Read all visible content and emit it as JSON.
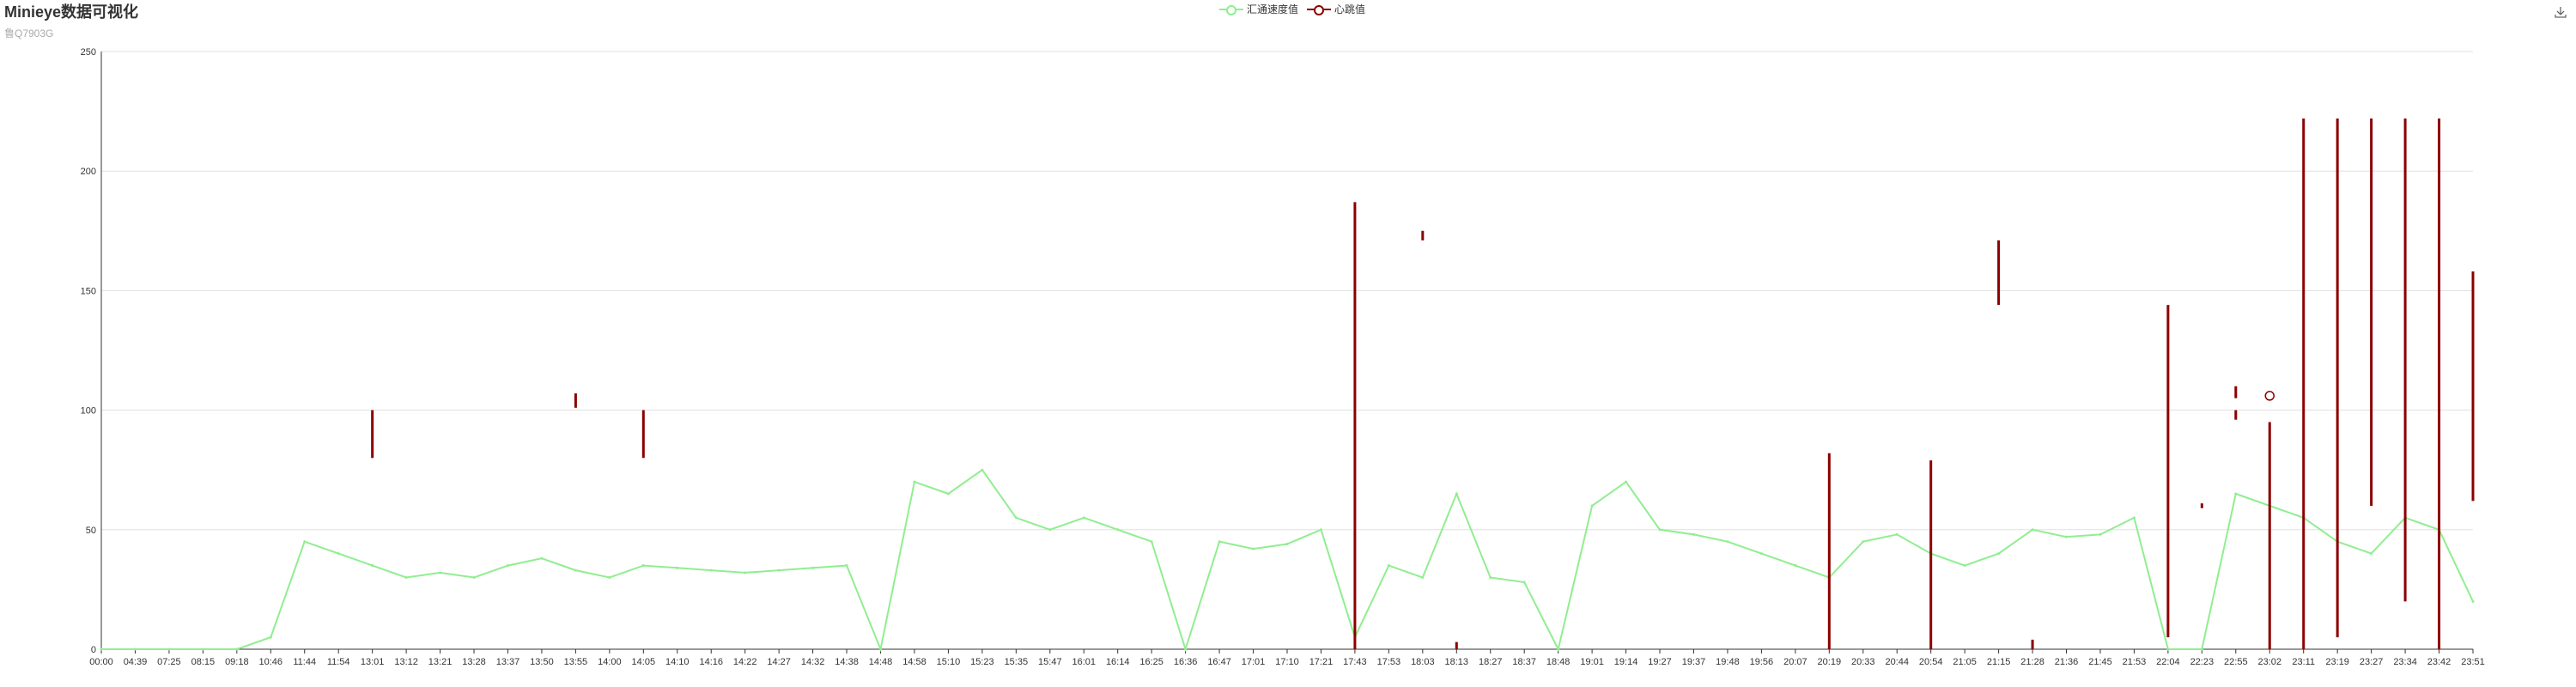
{
  "header": {
    "title": "Minieye数据可视化",
    "subtitle": "鲁Q7903G"
  },
  "legend": [
    {
      "name": "汇通速度值",
      "color": "#90ee90"
    },
    {
      "name": "心跳值",
      "color": "#8b0000"
    }
  ],
  "toolbox": {
    "icon": "download-icon"
  },
  "chart_data": {
    "type": "line",
    "title": "Minieye数据可视化",
    "subtitle": "鲁Q7903G",
    "ylim": [
      0,
      250
    ],
    "yticks": [
      0,
      50,
      100,
      150,
      200,
      250
    ],
    "grid": true,
    "legend_position": "top-center",
    "x_categories": [
      "00:00",
      "04:39",
      "07:25",
      "08:15",
      "09:18",
      "10:46",
      "11:44",
      "11:54",
      "13:01",
      "13:12",
      "13:21",
      "13:28",
      "13:37",
      "13:50",
      "13:55",
      "14:00",
      "14:05",
      "14:10",
      "14:16",
      "14:22",
      "14:27",
      "14:32",
      "14:38",
      "14:48",
      "14:58",
      "15:10",
      "15:23",
      "15:35",
      "15:47",
      "16:01",
      "16:14",
      "16:25",
      "16:36",
      "16:47",
      "17:01",
      "17:10",
      "17:21",
      "17:43",
      "17:53",
      "18:03",
      "18:13",
      "18:27",
      "18:37",
      "18:48",
      "19:01",
      "19:14",
      "19:27",
      "19:37",
      "19:48",
      "19:56",
      "20:07",
      "20:19",
      "20:33",
      "20:44",
      "20:54",
      "21:05",
      "21:15",
      "21:28",
      "21:36",
      "21:45",
      "21:53",
      "22:04",
      "22:23",
      "22:55",
      "23:02",
      "23:11",
      "23:19",
      "23:27",
      "23:34",
      "23:42",
      "23:51"
    ],
    "series": [
      {
        "name": "汇通速度值",
        "color": "#90ee90",
        "values": [
          0,
          0,
          0,
          0,
          0,
          5,
          45,
          40,
          35,
          30,
          32,
          30,
          35,
          38,
          33,
          30,
          35,
          34,
          33,
          32,
          33,
          34,
          35,
          0,
          70,
          65,
          75,
          55,
          50,
          55,
          50,
          45,
          0,
          45,
          42,
          44,
          50,
          5,
          35,
          30,
          65,
          30,
          28,
          0,
          60,
          70,
          50,
          48,
          45,
          40,
          35,
          30,
          45,
          48,
          40,
          35,
          40,
          50,
          47,
          48,
          55,
          0,
          0,
          65,
          60,
          55,
          45,
          40,
          55,
          50,
          20
        ]
      },
      {
        "name": "心跳值",
        "color": "#8b0000",
        "points": [
          {
            "x": "13:01",
            "low": 80,
            "high": 100
          },
          {
            "x": "13:55",
            "low": 101,
            "high": 107
          },
          {
            "x": "14:05",
            "low": 80,
            "high": 100
          },
          {
            "x": "17:43",
            "low": 0,
            "high": 187
          },
          {
            "x": "18:03",
            "low": 171,
            "high": 175
          },
          {
            "x": "18:13",
            "low": 0,
            "high": 3
          },
          {
            "x": "20:19",
            "low": 0,
            "high": 82
          },
          {
            "x": "20:54",
            "low": 0,
            "high": 79
          },
          {
            "x": "21:15",
            "low": 144,
            "high": 171
          },
          {
            "x": "21:28",
            "low": 0,
            "high": 4
          },
          {
            "x": "22:04",
            "low": 5,
            "high": 144
          },
          {
            "x": "22:23",
            "low": 59,
            "high": 61
          },
          {
            "x": "22:55",
            "low": 96,
            "high": 100
          },
          {
            "x": "22:55",
            "low": 105,
            "high": 110
          },
          {
            "x": "23:02",
            "low": 0,
            "high": 95
          },
          {
            "x": "23:02",
            "low": 106,
            "high": 106
          },
          {
            "x": "23:11",
            "low": 0,
            "high": 222
          },
          {
            "x": "23:19",
            "low": 5,
            "high": 222
          },
          {
            "x": "23:27",
            "low": 60,
            "high": 222
          },
          {
            "x": "23:34",
            "low": 20,
            "high": 222
          },
          {
            "x": "23:42",
            "low": 0,
            "high": 222
          },
          {
            "x": "23:51",
            "low": 62,
            "high": 158
          }
        ]
      }
    ]
  }
}
